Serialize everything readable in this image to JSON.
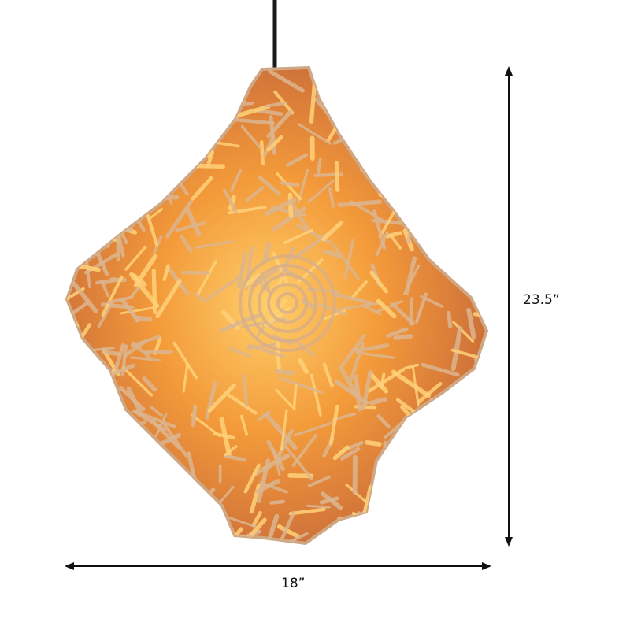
{
  "product": {
    "dimensions": {
      "height_label": "23.5”",
      "width_label": "18”"
    },
    "colors": {
      "glow": "#ffb13a",
      "rattan": "#d9b08a",
      "shade_dark": "#b8561a",
      "cord": "#1a1a1a",
      "dimension_line": "#111111"
    }
  }
}
